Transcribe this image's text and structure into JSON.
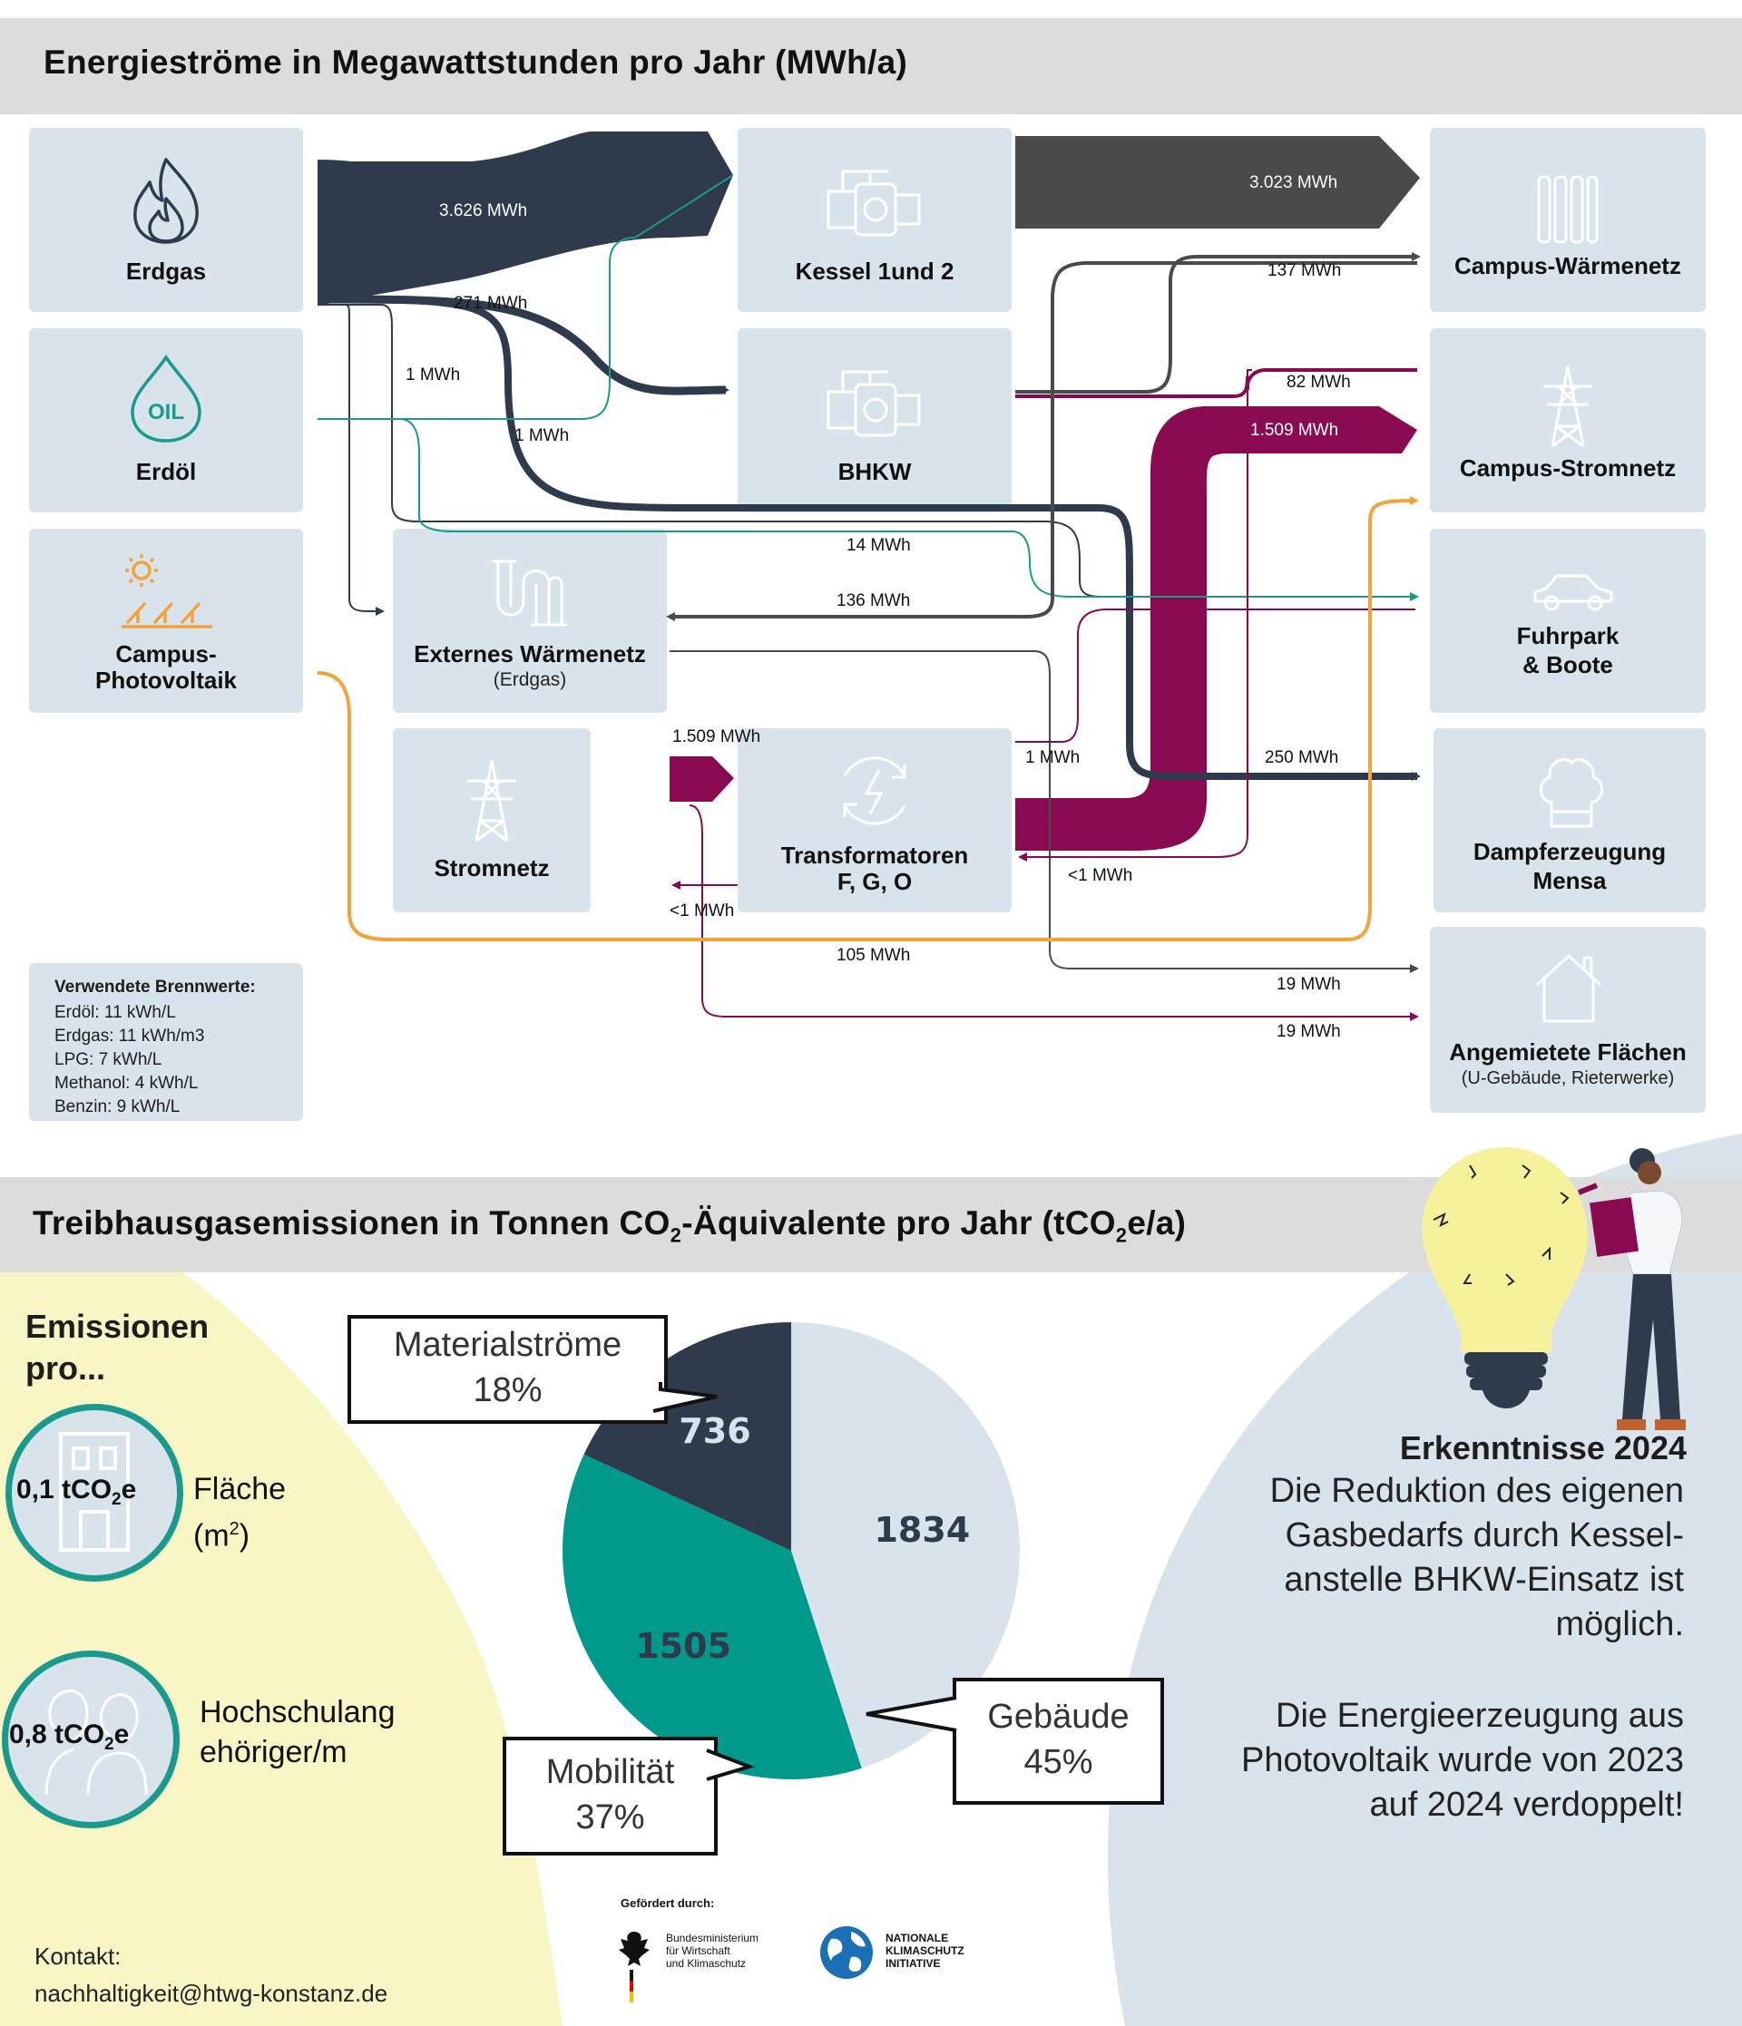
{
  "energy": {
    "title": "Energieströme in Megawattstunden pro Jahr  (MWh/a)",
    "sources": {
      "erdgas": "Erdgas",
      "erdoel": "Erdöl",
      "pv_line1": "Campus-",
      "pv_line2": "Photovoltaik"
    },
    "converters": {
      "kessel": "Kessel 1und 2",
      "bhkw": "BHKW",
      "extern": "Externes Wärmenetz",
      "extern_sub": "(Erdgas)",
      "stromnetz": "Stromnetz",
      "trafo_line1": "Transformatoren",
      "trafo_line2": "F, G, O"
    },
    "sinks": {
      "waermenetz": "Campus-Wärmenetz",
      "stromnetz": "Campus-Stromnetz",
      "fuhrpark_line1": "Fuhrpark",
      "fuhrpark_line2": "& Boote",
      "dampf_line1": "Dampferzeugung",
      "dampf_line2": "Mensa",
      "flaechen": "Angemietete Flächen",
      "flaechen_sub": "(U-Gebäude, Rieterwerke)"
    },
    "flows": {
      "erdgas_kessel": "3.626 MWh",
      "kessel_waerme": "3.023 MWh",
      "erdgas_bhkw": "271 MWh",
      "bhkw_waerme": "137 MWh",
      "bhkw_strom": "82 MWh",
      "trafo_strom": "1.509 MWh",
      "erdgas_extern": "1 MWh",
      "erdoel_1": "1 MWh",
      "fuhrpark": "14 MWh",
      "extern_back": "136 MWh",
      "strom_in": "1.509 MWh",
      "trafo_1": "1 MWh",
      "dampf": "250 MWh",
      "trafo_back": "<1 MWh",
      "strom_back": "<1 MWh",
      "pv": "105 MWh",
      "flaechen_1": "19 MWh",
      "flaechen_2": "19 MWh"
    },
    "legend": {
      "title": "Verwendete Brennwerte:",
      "items": [
        "Erdöl: 11 kWh/L",
        "Erdgas: 11 kWh/m3",
        "LPG: 7 kWh/L",
        "Methanol: 4 kWh/L",
        "Benzin: 9 kWh/L"
      ]
    },
    "icons": {
      "erdgas": "flame-icon",
      "erdoel": "oil-drop-icon",
      "pv": "solar-panel-icon",
      "kessel": "boiler-icon",
      "bhkw": "chp-unit-icon",
      "extern": "pipe-icon",
      "stromnetz": "power-pylon-icon",
      "trafo": "transformer-icon",
      "waermenetz": "radiator-icon",
      "campus_strom": "power-pylon-icon",
      "fuhrpark": "car-icon",
      "dampf": "chef-hat-icon",
      "flaechen": "house-icon"
    },
    "colors": {
      "gas": "#2f3b4c",
      "heat": "#4a4a4a",
      "power": "#8a0a52",
      "oil": "#1a9a8d",
      "pv": "#f2a33a"
    }
  },
  "emissions": {
    "title_pre": "Treibhausgasemissionen in Tonnen CO",
    "title_sub1": "2",
    "title_mid": "-Äquivalente pro Jahr (tCO",
    "title_sub2": "2",
    "title_post": "e/a)",
    "per_title_line1": "Emissionen",
    "per_title_line2": "pro...",
    "per_area_value": "0,1 tCO",
    "per_area_value_sub": "2",
    "per_area_value_post": "e",
    "per_area_label_line1": "Fläche",
    "per_area_label_line2": "(m",
    "per_area_label_sup": "2",
    "per_area_label_close": ")",
    "per_person_value": "0,8 tCO",
    "per_person_value_sub": "2",
    "per_person_value_post": "e",
    "per_person_label_line1": "Hochschulang",
    "per_person_label_line2": "ehöriger/m",
    "icons": {
      "area": "building-icon",
      "person": "people-icon"
    }
  },
  "chart_data": {
    "type": "pie",
    "categories": [
      "Gebäude",
      "Mobilität",
      "Materialströme"
    ],
    "values": [
      1834,
      1505,
      736
    ],
    "percent_labels": [
      "45%",
      "37%",
      "18%"
    ],
    "colors": [
      "#d8e3ec",
      "#009a8c",
      "#2f3b4c"
    ]
  },
  "insights": {
    "title": "Erkenntnisse 2024",
    "p1_lines": [
      "Die Reduktion des eigenen",
      "Gasbedarfs durch Kessel-",
      "anstelle BHKW-Einsatz ist",
      "möglich."
    ],
    "p2_lines": [
      "Die Energieerzeugung aus",
      "Photovoltaik wurde von 2023",
      "auf 2024 verdoppelt!"
    ],
    "icons": {
      "illustration": "lightbulb-person-illustration"
    }
  },
  "footer": {
    "funded_by": "Gefördert durch:",
    "bmwk_lines": [
      "Bundesministerium",
      "für Wirtschaft",
      "und Klimaschutz"
    ],
    "nki_lines": [
      "NATIONALE",
      "KLIMASCHUTZ",
      "INITIATIVE"
    ],
    "contact_label": "Kontakt:",
    "contact_email": "nachhaltigkeit@htwg-konstanz.de",
    "icons": {
      "bmwk": "federal-eagle-icon",
      "nki": "globe-icon"
    }
  }
}
